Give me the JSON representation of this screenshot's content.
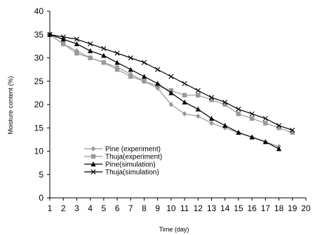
{
  "chart_data": {
    "type": "line",
    "xlabel": "Time (day)",
    "ylabel": "Moisture content (%)",
    "xlim": [
      1,
      20
    ],
    "ylim": [
      0,
      40
    ],
    "xticks": [
      1,
      2,
      3,
      4,
      5,
      6,
      7,
      8,
      9,
      10,
      11,
      12,
      13,
      14,
      15,
      16,
      17,
      18,
      19,
      20
    ],
    "yticks": [
      0,
      5,
      10,
      15,
      20,
      25,
      30,
      35,
      40
    ],
    "grid": false,
    "legend_position": "lower-left",
    "series": [
      {
        "name": "Pine (experiment)",
        "marker": "diamond",
        "color": "#999999",
        "x": [
          1,
          2,
          3,
          4,
          5,
          6,
          7,
          8,
          9,
          10,
          11,
          12,
          13,
          14,
          15,
          16,
          17,
          18
        ],
        "y": [
          35,
          33,
          31.5,
          30,
          29,
          28,
          26.5,
          25,
          23.5,
          20,
          18,
          17.5,
          16,
          15,
          14,
          13,
          12,
          11
        ]
      },
      {
        "name": "Thuja(experiment)",
        "marker": "square",
        "color": "#999999",
        "x": [
          1,
          2,
          3,
          4,
          5,
          6,
          7,
          8,
          9,
          10,
          11,
          12,
          13,
          14,
          15,
          16,
          17,
          18,
          19
        ],
        "y": [
          35,
          33,
          31,
          30,
          29,
          27.5,
          26,
          25,
          24,
          23,
          22,
          22,
          21,
          20,
          18,
          17,
          16,
          15,
          14
        ]
      },
      {
        "name": "Pine(simulation)",
        "marker": "triangle",
        "color": "#000000",
        "x": [
          1,
          2,
          3,
          4,
          5,
          6,
          7,
          8,
          9,
          10,
          11,
          12,
          13,
          14,
          15,
          16,
          17,
          18
        ],
        "y": [
          35,
          34,
          33,
          31.5,
          30.5,
          29,
          27.5,
          26,
          24.5,
          22.5,
          20.5,
          19,
          17,
          15.5,
          14,
          13,
          12,
          10.5
        ]
      },
      {
        "name": "Thuja(simulation)",
        "marker": "x",
        "color": "#000000",
        "x": [
          1,
          2,
          3,
          4,
          5,
          6,
          7,
          8,
          9,
          10,
          11,
          12,
          13,
          14,
          15,
          16,
          17,
          18,
          19
        ],
        "y": [
          35,
          34.5,
          34,
          33,
          32,
          31,
          30,
          29,
          27.5,
          26,
          24.5,
          23,
          21.5,
          20.5,
          19,
          18,
          17,
          15.5,
          14.5
        ]
      }
    ],
    "legend_entries": [
      "Pine (experiment)",
      "Thuja(experiment)",
      "Pine(simulation)",
      "Thuja(simulation)"
    ]
  }
}
